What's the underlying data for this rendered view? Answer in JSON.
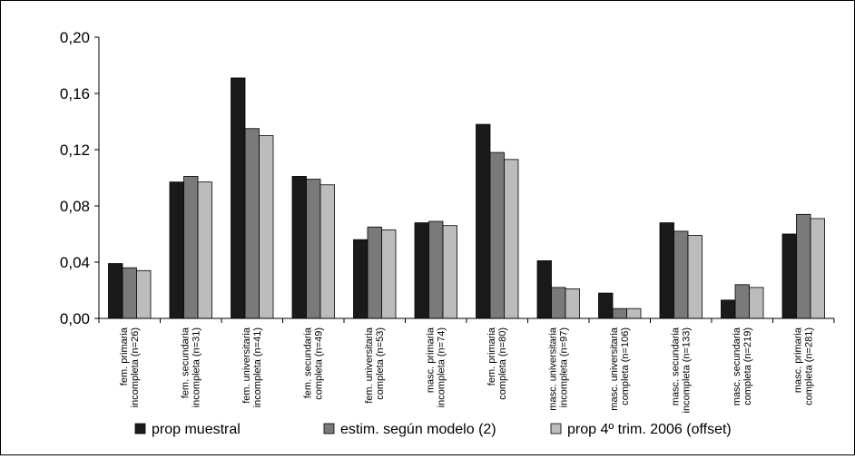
{
  "chart_data": {
    "type": "bar",
    "title": "",
    "xlabel": "",
    "ylabel": "",
    "ylim": [
      0,
      0.2
    ],
    "yticks": [
      "0,00",
      "0,04",
      "0,08",
      "0,12",
      "0,16",
      "0,20"
    ],
    "ytick_values": [
      0,
      0.04,
      0.08,
      0.12,
      0.16,
      0.2
    ],
    "grid": false,
    "legend_position": "bottom",
    "categories": [
      [
        "fem. primaria",
        "incompleta (n=26)"
      ],
      [
        "fem. secundaria",
        "incompleta (n=31)"
      ],
      [
        "fem. universitaria",
        "incompleta (n=41)"
      ],
      [
        "fem. secundaria",
        "completa (n=49)"
      ],
      [
        "fem. universitaria",
        "completa (n=53)"
      ],
      [
        "masc. primaria",
        "incompleta (n=74)"
      ],
      [
        "fem. primaria",
        "completa (n=80)"
      ],
      [
        "masc. universitaria",
        "incompleta (n=97)"
      ],
      [
        "masc. universitaria",
        "completa (n=106)"
      ],
      [
        "masc. secundaria",
        "incompleta (n=133)"
      ],
      [
        "masc. secundaria",
        "completa (n=219)"
      ],
      [
        "masc. primaria",
        "completa (n=281)"
      ]
    ],
    "series": [
      {
        "name": "prop muestral",
        "color": "#1a1a1a",
        "values": [
          0.039,
          0.097,
          0.171,
          0.101,
          0.056,
          0.068,
          0.138,
          0.041,
          0.018,
          0.068,
          0.013,
          0.06
        ]
      },
      {
        "name": "estim. según modelo (2)",
        "color": "#7a7a7a",
        "values": [
          0.036,
          0.101,
          0.135,
          0.099,
          0.065,
          0.069,
          0.118,
          0.022,
          0.007,
          0.062,
          0.024,
          0.074
        ]
      },
      {
        "name": "prop 4º trim. 2006 (offset)",
        "color": "#bcbcbc",
        "values": [
          0.034,
          0.097,
          0.13,
          0.095,
          0.063,
          0.066,
          0.113,
          0.021,
          0.007,
          0.059,
          0.022,
          0.071
        ]
      }
    ]
  }
}
